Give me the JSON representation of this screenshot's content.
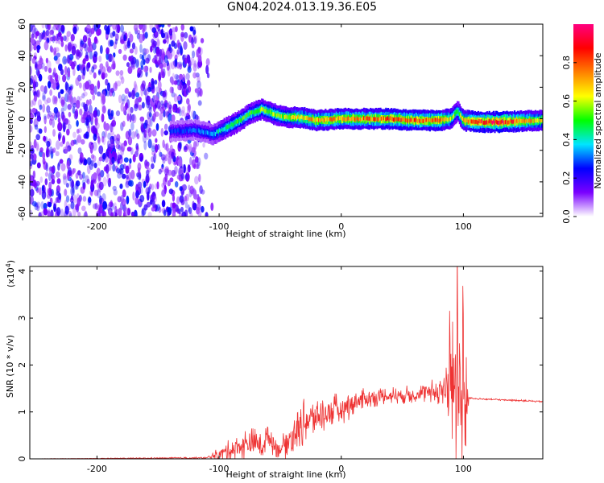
{
  "title": "GN04.2024.013.19.36.E05",
  "chart_data": [
    {
      "type": "heatmap",
      "xlabel": "Height of straight line (km)",
      "ylabel": "Frequency (Hz)",
      "xlim": [
        -255,
        165
      ],
      "ylim": [
        -62,
        60
      ],
      "xticks": [
        -200,
        -100,
        0,
        100
      ],
      "yticks": [
        60,
        40,
        20,
        0,
        -20,
        -40,
        -60
      ],
      "colorbar": {
        "label": "Normalized spectral amplitude",
        "range": [
          0,
          1
        ],
        "ticks": [
          0.0,
          0.2,
          0.4,
          0.6,
          0.8
        ],
        "colors": [
          "#ffffff",
          "#7a00ff",
          "#0000ff",
          "#00e5ff",
          "#00ff00",
          "#ffff00",
          "#ff8000",
          "#ff0000",
          "#ff0080"
        ]
      },
      "noise_region": {
        "x": [
          -255,
          -105
        ],
        "y": [
          -62,
          60
        ],
        "amplitude": [
          0.0,
          0.2
        ]
      },
      "signal_ridge": {
        "x": [
          -140,
          -120,
          -105,
          -95,
          -85,
          -75,
          -65,
          -55,
          -45,
          -35,
          -20,
          0,
          20,
          40,
          60,
          80,
          90,
          95,
          100,
          110,
          130,
          165
        ],
        "freq": [
          -8,
          -7,
          -10,
          -6,
          -2,
          3,
          6,
          3,
          1,
          1,
          -1,
          0,
          0,
          0,
          -1,
          -1,
          0,
          5,
          -1,
          -2,
          -2,
          -1
        ],
        "amplitude": [
          0.25,
          0.3,
          0.35,
          0.45,
          0.5,
          0.5,
          0.55,
          0.55,
          0.6,
          0.65,
          0.7,
          0.75,
          0.75,
          0.8,
          0.8,
          0.8,
          0.6,
          0.5,
          0.7,
          0.85,
          0.9,
          0.6
        ]
      }
    },
    {
      "type": "line",
      "xlabel": "Height of straight line (km)",
      "ylabel": "SNR (10 * v/v)",
      "yscale_label": "(x10",
      "yscale_exponent": "4",
      "xlim": [
        -255,
        165
      ],
      "ylim": [
        0,
        4.1
      ],
      "xticks": [
        -200,
        -100,
        0,
        100
      ],
      "yticks": [
        0,
        1,
        2,
        3,
        4
      ],
      "color": "#ee3333",
      "series": [
        {
          "x": [
            -255,
            -110,
            -100,
            -90,
            -80,
            -70,
            -65,
            -60,
            -55,
            -50,
            -45,
            -40,
            -30,
            -20,
            -10,
            0,
            10,
            20,
            30,
            40,
            50,
            60,
            70,
            80,
            85,
            90,
            95,
            100,
            105,
            110,
            120,
            140,
            165
          ],
          "y": [
            0.0,
            0.02,
            0.1,
            0.2,
            0.3,
            0.35,
            0.25,
            0.5,
            0.3,
            0.2,
            0.35,
            0.5,
            0.8,
            0.9,
            1.0,
            1.05,
            1.2,
            1.28,
            1.32,
            1.35,
            1.36,
            1.38,
            1.4,
            1.45,
            1.5,
            1.6,
            1.8,
            1.2,
            1.3,
            1.28,
            1.27,
            1.25,
            1.22
          ],
          "spread": [
            0.0,
            0.02,
            0.15,
            0.25,
            0.35,
            0.35,
            0.25,
            0.35,
            0.25,
            0.2,
            0.35,
            0.45,
            0.5,
            0.45,
            0.4,
            0.35,
            0.3,
            0.25,
            0.2,
            0.2,
            0.2,
            0.2,
            0.25,
            0.3,
            0.8,
            1.5,
            2.3,
            2.0,
            0.02,
            0.02,
            0.02,
            0.02,
            0.02
          ]
        }
      ]
    }
  ]
}
